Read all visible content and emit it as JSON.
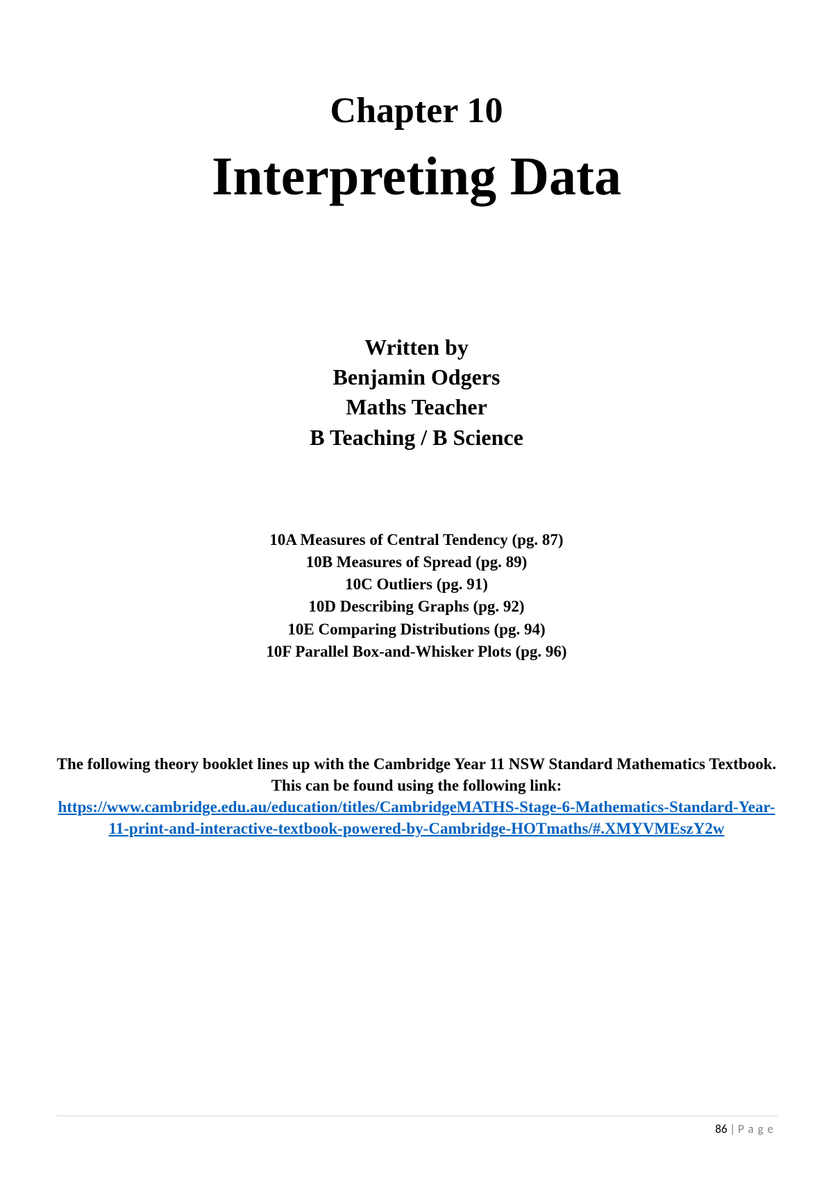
{
  "chapter": {
    "label": "Chapter 10",
    "title": "Interpreting Data"
  },
  "author": {
    "written_by": "Written by",
    "name": "Benjamin Odgers",
    "role": "Maths Teacher",
    "qualification": "B Teaching / B Science"
  },
  "toc": [
    "10A Measures of Central Tendency (pg. 87)",
    "10B Measures of Spread (pg. 89)",
    "10C Outliers (pg. 91)",
    "10D Describing Graphs (pg. 92)",
    "10E Comparing Distributions (pg. 94)",
    "10F Parallel Box-and-Whisker Plots (pg. 96)"
  ],
  "description": {
    "text": "The following theory booklet lines up with the Cambridge Year 11 NSW Standard Mathematics Textbook. This can be found using the following link:",
    "link": "https://www.cambridge.edu.au/education/titles/CambridgeMATHS-Stage-6-Mathematics-Standard-Year-11-print-and-interactive-textbook-powered-by-Cambridge-HOTmaths/#.XMYVMEszY2w"
  },
  "footer": {
    "page_number": "86",
    "separator": " | ",
    "label": "Page"
  }
}
